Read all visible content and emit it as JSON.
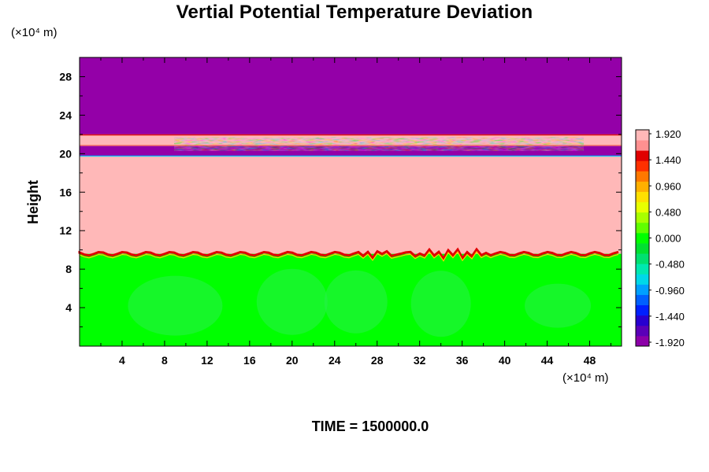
{
  "chart_data": {
    "type": "heatmap",
    "title": "Vertial Potential Temperature Deviation",
    "ylabel": "Height",
    "x_unit": "(×10⁴ m)",
    "y_unit": "(×10⁴ m)",
    "xlim": [
      0,
      51
    ],
    "ylim": [
      0,
      30
    ],
    "x_ticks": [
      4,
      8,
      12,
      16,
      20,
      24,
      28,
      32,
      36,
      40,
      44,
      48
    ],
    "y_ticks": [
      4,
      8,
      12,
      16,
      20,
      24,
      28
    ],
    "colorbar": {
      "min": -2.04,
      "max": 2.04,
      "labels": [
        "1.920",
        "1.440",
        "0.960",
        "0.480",
        "0.000",
        "-0.480",
        "-0.960",
        "-1.440",
        "-1.920"
      ],
      "colors": [
        "#8c00a8",
        "#5a00b8",
        "#2800d0",
        "#0020ff",
        "#0060ff",
        "#00a0ff",
        "#00d8e8",
        "#00e8b0",
        "#00e070",
        "#00e030",
        "#00ff00",
        "#60ff00",
        "#a8ff00",
        "#e8ff00",
        "#ffe000",
        "#ffb000",
        "#ff7800",
        "#ff3000",
        "#e00000",
        "#ff9090",
        "#ffb8b8"
      ]
    },
    "regions": [
      {
        "y_from": 0,
        "y_to": 9.6,
        "value": 0.0,
        "color": "#00ff00"
      },
      {
        "y_from": 9.6,
        "y_to": 19.7,
        "value": 2.0,
        "color": "#ffb8b8"
      },
      {
        "y_from": 19.7,
        "y_to": 20.8,
        "value": -2.0,
        "color": "#9400a8"
      },
      {
        "y_from": 20.8,
        "y_to": 22.0,
        "value": 2.0,
        "color": "#ffb8b8"
      },
      {
        "y_from": 22.0,
        "y_to": 30,
        "value": -2.0,
        "color": "#9400a8"
      }
    ]
  },
  "footer": {
    "time_text": "TIME = 1500000.0"
  }
}
